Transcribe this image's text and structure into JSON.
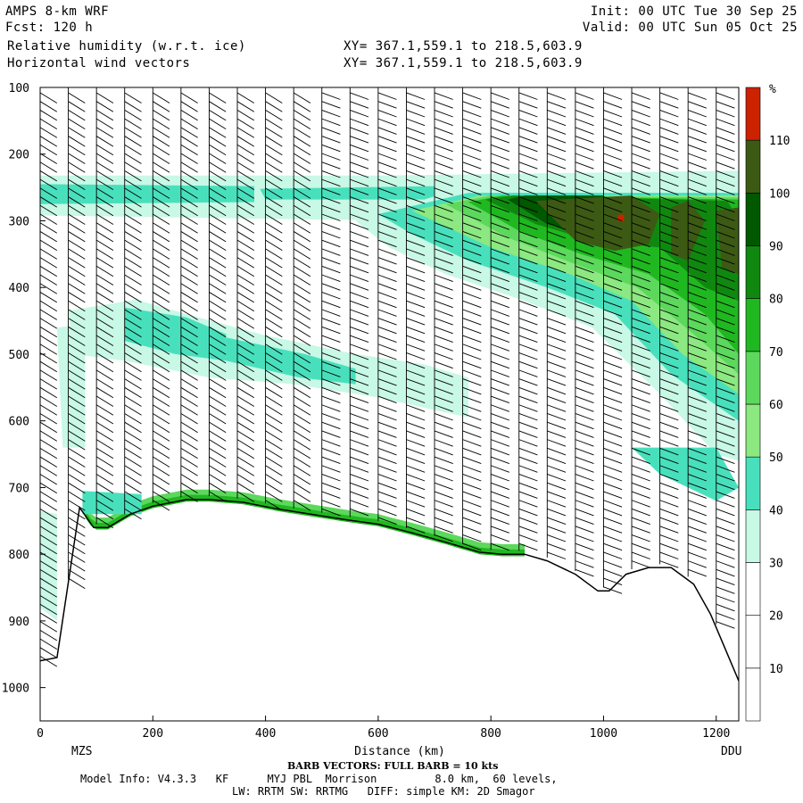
{
  "header": {
    "model": "AMPS 8-km WRF",
    "fcst": "Fcst: 120 h",
    "init": "Init: 00 UTC Tue 30 Sep 25",
    "valid": "Valid: 00 UTC Sun 05 Oct 25",
    "field1": "Relative humidity (w.r.t. ice)",
    "field2": "Horizontal wind vectors",
    "xy1": "XY= 367.1,559.1 to 218.5,603.9",
    "xy2": "XY= 367.1,559.1 to 218.5,603.9"
  },
  "footer": {
    "barb_note": "BARB VECTORS: FULL BARB = 10 kts",
    "model_info": "Model Info: V4.3.3   KF      MYJ PBL  Morrison         8.0 km,  60 levels,",
    "physics": "LW: RRTM SW: RRTMG   DIFF: simple KM: 2D Smagor"
  },
  "chart_data": {
    "type": "heatmap",
    "title": "",
    "xlabel": "Distance (km)",
    "ylabel": "",
    "xlim": [
      0,
      1240
    ],
    "ylim": [
      1050,
      100
    ],
    "x_ticks": [
      0,
      200,
      400,
      600,
      800,
      1000,
      1200
    ],
    "y_ticks": [
      100,
      200,
      300,
      400,
      500,
      600,
      700,
      800,
      900,
      1000
    ],
    "start_station": "MZS",
    "end_station": "DDU",
    "colorbar": {
      "unit": "%",
      "levels": [
        10,
        20,
        30,
        40,
        50,
        60,
        70,
        80,
        90,
        100,
        110
      ],
      "colors": [
        "#ffffff",
        "#ffffff",
        "#ffffff",
        "#c8f8e6",
        "#48e0bc",
        "#8ce880",
        "#5cd85c",
        "#20b820",
        "#108810",
        "#005800",
        "#3c5a14",
        "#cc2200"
      ]
    },
    "terrain_pressure": {
      "x": [
        0,
        30,
        70,
        95,
        120,
        160,
        200,
        260,
        300,
        360,
        420,
        480,
        540,
        600,
        660,
        720,
        780,
        820,
        860,
        900,
        950,
        990,
        1010,
        1040,
        1080,
        1120,
        1160,
        1190,
        1220,
        1240
      ],
      "p": [
        960,
        955,
        730,
        760,
        760,
        740,
        728,
        718,
        718,
        722,
        732,
        740,
        748,
        755,
        768,
        782,
        797,
        800,
        800,
        810,
        830,
        855,
        855,
        830,
        820,
        820,
        845,
        890,
        950,
        990
      ]
    },
    "rh_regions": [
      {
        "band": "upper",
        "x": [
          0,
          1240
        ],
        "p": [
          230,
          285
        ],
        "value": 40
      },
      {
        "band": "mid",
        "x": [
          50,
          650
        ],
        "p": [
          450,
          560
        ],
        "value": 40
      },
      {
        "band": "moist_core",
        "x": [
          760,
          1240
        ],
        "p": [
          260,
          420
        ],
        "value": 100
      },
      {
        "band": "lowlevel",
        "x": [
          80,
          850
        ],
        "p": [
          705,
          780
        ],
        "value": 70
      }
    ],
    "max_marker": {
      "x": 1030,
      "p": 295,
      "value": 112
    },
    "barb_columns": [
      0,
      50,
      100,
      150,
      200,
      250,
      300,
      350,
      400,
      450,
      500,
      550,
      600,
      650,
      700,
      750,
      800,
      850,
      900,
      950,
      1000,
      1050,
      1100,
      1150,
      1200
    ]
  }
}
